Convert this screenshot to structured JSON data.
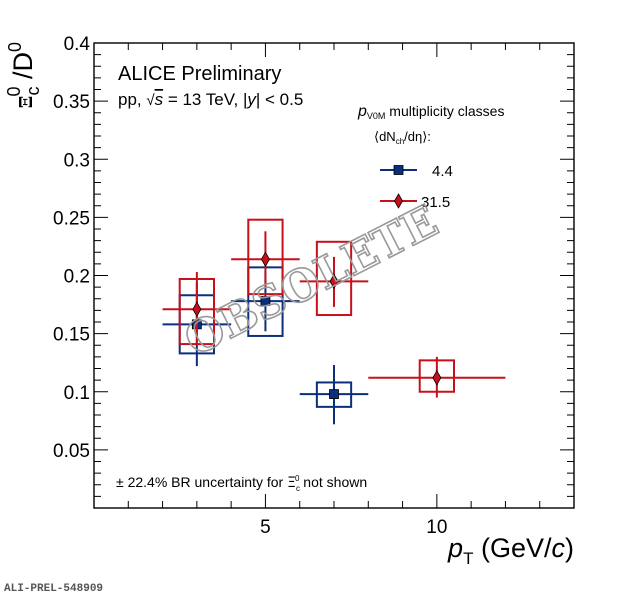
{
  "chart_data": {
    "type": "scatter",
    "title": "",
    "header": {
      "experiment": "ALICE Preliminary",
      "system": "pp, ",
      "sqrt": "s",
      "energy": " = 13 TeV, |",
      "rap_var": "y",
      "rap_cut": "| < 0.5"
    },
    "xlabel": {
      "var": "p",
      "sub": "T",
      "unit_open": " (GeV/",
      "unit_c": "c",
      "unit_close": ")"
    },
    "ylabel": {
      "num": "Ξ",
      "num_sup": "0",
      "num_sub": "c",
      "slash": " /D",
      "den_sup": "0"
    },
    "xlim": [
      0,
      14
    ],
    "ylim": [
      0,
      0.4
    ],
    "x_major_ticks": [
      5,
      10
    ],
    "x_tick_labels": [
      "5",
      "10"
    ],
    "y_major_ticks": [
      0.05,
      0.1,
      0.15,
      0.2,
      0.25,
      0.3,
      0.35,
      0.4
    ],
    "y_tick_labels": [
      "0.05",
      "0.1",
      "0.15",
      "0.2",
      "0.25",
      "0.3",
      "0.35",
      "0.4"
    ],
    "grid": false,
    "legend": {
      "position": "top-right",
      "title_var": "p",
      "title_sub": "V0M",
      "title_text": " multiplicity classes",
      "subtitle_open": "⟨dN",
      "subtitle_sub": "ch",
      "subtitle_close": "/dη⟩:"
    },
    "annotation": {
      "prefix": "± 22.4% BR uncertainty for ",
      "particle": "Ξ",
      "particle_sup": "0",
      "particle_sub": "c",
      "suffix": " not shown"
    },
    "watermark": "OBSOLETE",
    "series": [
      {
        "name": "4.4",
        "color": "#0b2f7c",
        "marker": "square",
        "points": [
          {
            "x": 3,
            "y": 0.158,
            "xlo": 2,
            "xhi": 4,
            "stat_lo": 0.122,
            "stat_hi": 0.194,
            "syst_lo": 0.133,
            "syst_hi": 0.183,
            "syst_xlo": 2.5,
            "syst_xhi": 3.5
          },
          {
            "x": 5,
            "y": 0.178,
            "xlo": 4,
            "xhi": 6,
            "stat_lo": 0.152,
            "stat_hi": 0.204,
            "syst_lo": 0.148,
            "syst_hi": 0.207,
            "syst_xlo": 4.5,
            "syst_xhi": 5.5
          },
          {
            "x": 7,
            "y": 0.098,
            "xlo": 6,
            "xhi": 8,
            "stat_lo": 0.072,
            "stat_hi": 0.123,
            "syst_lo": 0.087,
            "syst_hi": 0.108,
            "syst_xlo": 6.5,
            "syst_xhi": 7.5
          }
        ]
      },
      {
        "name": "31.5",
        "color": "#c8101a",
        "marker": "diamond",
        "points": [
          {
            "x": 3,
            "y": 0.171,
            "xlo": 2,
            "xhi": 4,
            "stat_lo": 0.14,
            "stat_hi": 0.203,
            "syst_lo": 0.141,
            "syst_hi": 0.197,
            "syst_xlo": 2.5,
            "syst_xhi": 3.5
          },
          {
            "x": 5,
            "y": 0.214,
            "xlo": 4,
            "xhi": 6,
            "stat_lo": 0.19,
            "stat_hi": 0.238,
            "syst_lo": 0.184,
            "syst_hi": 0.248,
            "syst_xlo": 4.5,
            "syst_xhi": 5.5
          },
          {
            "x": 7,
            "y": 0.195,
            "xlo": 6,
            "xhi": 8,
            "stat_lo": 0.173,
            "stat_hi": 0.216,
            "syst_lo": 0.166,
            "syst_hi": 0.229,
            "syst_xlo": 6.5,
            "syst_xhi": 7.5
          },
          {
            "x": 10,
            "y": 0.112,
            "xlo": 8,
            "xhi": 12,
            "stat_lo": 0.095,
            "stat_hi": 0.13,
            "syst_lo": 0.1,
            "syst_hi": 0.127,
            "syst_xlo": 9.5,
            "syst_xhi": 10.5
          }
        ]
      }
    ]
  },
  "footer": {
    "reference_id": "ALI-PREL-548909"
  }
}
